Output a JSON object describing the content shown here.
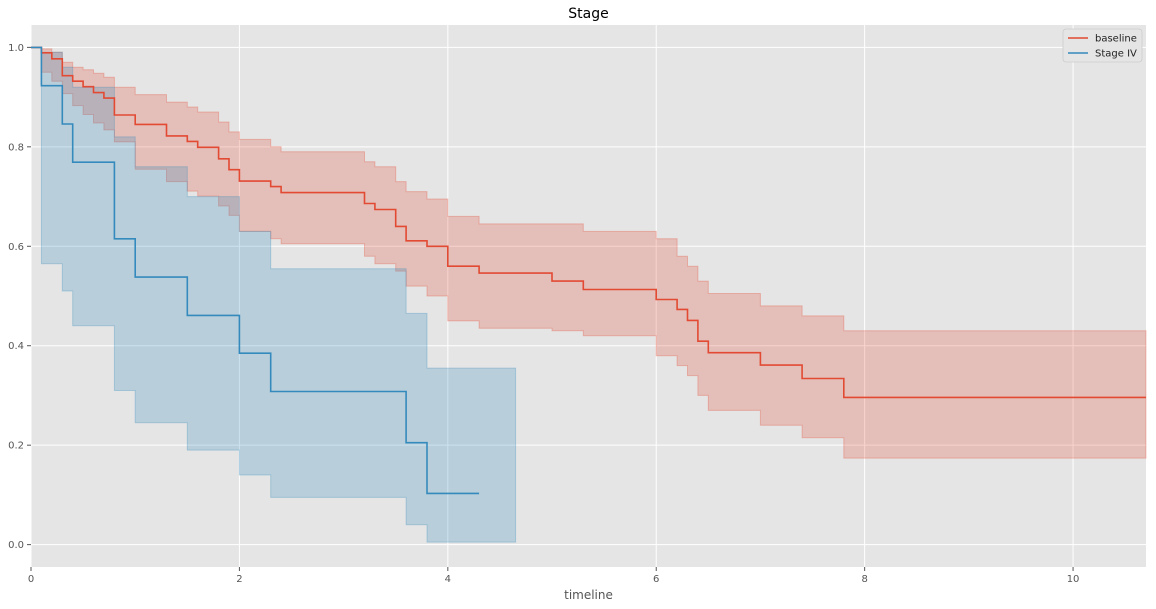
{
  "chart_data": {
    "type": "line",
    "title": "Stage",
    "xlabel": "timeline",
    "ylabel": "",
    "xlim": [
      0,
      10.7
    ],
    "ylim": [
      -0.045,
      1.045
    ],
    "xticks": [
      0,
      2,
      4,
      6,
      8,
      10
    ],
    "yticks": [
      0.0,
      0.2,
      0.4,
      0.6,
      0.8,
      1.0
    ],
    "xtick_labels": [
      "0",
      "2",
      "4",
      "6",
      "8",
      "10"
    ],
    "ytick_labels": [
      "0.0",
      "0.2",
      "0.4",
      "0.6",
      "0.8",
      "1.0"
    ],
    "grid": true,
    "legend_position": "top-right",
    "style": "survival step curves with confidence bands",
    "series": [
      {
        "name": "baseline",
        "color": "#E24A33",
        "x": [
          0,
          0.1,
          0.2,
          0.3,
          0.4,
          0.5,
          0.6,
          0.7,
          0.8,
          1.0,
          1.3,
          1.5,
          1.6,
          1.8,
          1.9,
          2.0,
          2.3,
          2.4,
          3.2,
          3.3,
          3.5,
          3.6,
          3.8,
          4.0,
          4.3,
          5.0,
          5.3,
          6.0,
          6.2,
          6.3,
          6.4,
          6.5,
          7.0,
          7.4,
          7.8,
          10.7
        ],
        "y": [
          1.0,
          0.989,
          0.977,
          0.943,
          0.932,
          0.921,
          0.909,
          0.898,
          0.864,
          0.845,
          0.822,
          0.811,
          0.799,
          0.776,
          0.754,
          0.731,
          0.72,
          0.708,
          0.686,
          0.674,
          0.64,
          0.611,
          0.6,
          0.56,
          0.546,
          0.53,
          0.513,
          0.493,
          0.473,
          0.451,
          0.409,
          0.386,
          0.361,
          0.334,
          0.296,
          0.296
        ],
        "lower": [
          1.0,
          0.95,
          0.932,
          0.907,
          0.883,
          0.865,
          0.848,
          0.834,
          0.81,
          0.755,
          0.73,
          0.711,
          0.701,
          0.681,
          0.662,
          0.63,
          0.615,
          0.605,
          0.58,
          0.565,
          0.55,
          0.52,
          0.5,
          0.45,
          0.435,
          0.43,
          0.42,
          0.38,
          0.36,
          0.34,
          0.3,
          0.27,
          0.24,
          0.215,
          0.174,
          0.174
        ],
        "upper": [
          1.0,
          0.997,
          0.99,
          0.97,
          0.96,
          0.955,
          0.948,
          0.94,
          0.92,
          0.905,
          0.89,
          0.88,
          0.87,
          0.85,
          0.83,
          0.815,
          0.8,
          0.79,
          0.77,
          0.76,
          0.73,
          0.71,
          0.695,
          0.66,
          0.645,
          0.645,
          0.63,
          0.615,
          0.58,
          0.56,
          0.53,
          0.505,
          0.48,
          0.46,
          0.43,
          0.43
        ]
      },
      {
        "name": "Stage IV",
        "color": "#348ABD",
        "x": [
          0,
          0.1,
          0.3,
          0.4,
          0.8,
          1.0,
          1.5,
          2.0,
          2.3,
          3.6,
          3.8,
          4.3
        ],
        "y": [
          1.0,
          0.923,
          0.846,
          0.769,
          0.615,
          0.538,
          0.461,
          0.385,
          0.308,
          0.205,
          0.103,
          0.103
        ],
        "lower": [
          1.0,
          0.565,
          0.51,
          0.44,
          0.31,
          0.245,
          0.19,
          0.14,
          0.095,
          0.04,
          0.005,
          0.005
        ],
        "upper": [
          1.0,
          0.99,
          0.96,
          0.92,
          0.82,
          0.76,
          0.7,
          0.63,
          0.555,
          0.465,
          0.355,
          0.355
        ],
        "band_end_x": 4.65
      }
    ]
  }
}
